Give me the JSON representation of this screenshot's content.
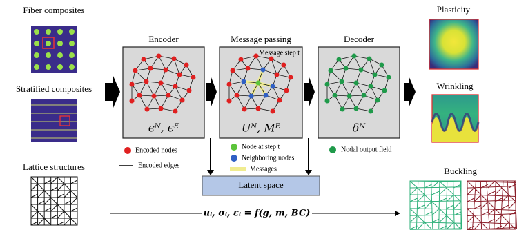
{
  "left": {
    "fiber": "Fiber composites",
    "stratified": "Stratified composites",
    "lattice": "Lattice structures"
  },
  "encoder": {
    "title": "Encoder",
    "formula": "ϵᴺ, ϵᴱ",
    "legend": [
      "Encoded nodes",
      "Encoded edges"
    ]
  },
  "message_passing": {
    "title": "Message passing",
    "step": "Message step t",
    "formula": "Uᴺ, Mᴱ",
    "legend": [
      "Node at step t",
      "Neighboring nodes",
      "Messages"
    ]
  },
  "decoder": {
    "title": "Decoder",
    "formula": "δᴺ",
    "legend": [
      "Nodal output field"
    ]
  },
  "latent": "Latent space",
  "outputs": [
    "Plasticity",
    "Wrinkling",
    "Buckling"
  ],
  "equation": "uᵢ, σᵢ, εᵢ = f(g, m, BC)"
}
